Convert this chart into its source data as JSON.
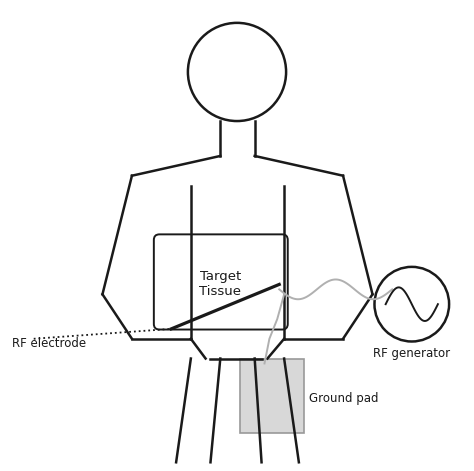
{
  "background_color": "#ffffff",
  "line_color": "#1a1a1a",
  "light_gray": "#d8d8d8",
  "medium_gray": "#999999",
  "cable_gray": "#b0b0b0",
  "figure_size": [
    4.74,
    4.71
  ],
  "dpi": 100,
  "labels": {
    "target_tissue": "Target\nTissue",
    "rf_electrode": "RF electrode",
    "ground_pad": "Ground pad",
    "rf_generator": "RF generator"
  }
}
